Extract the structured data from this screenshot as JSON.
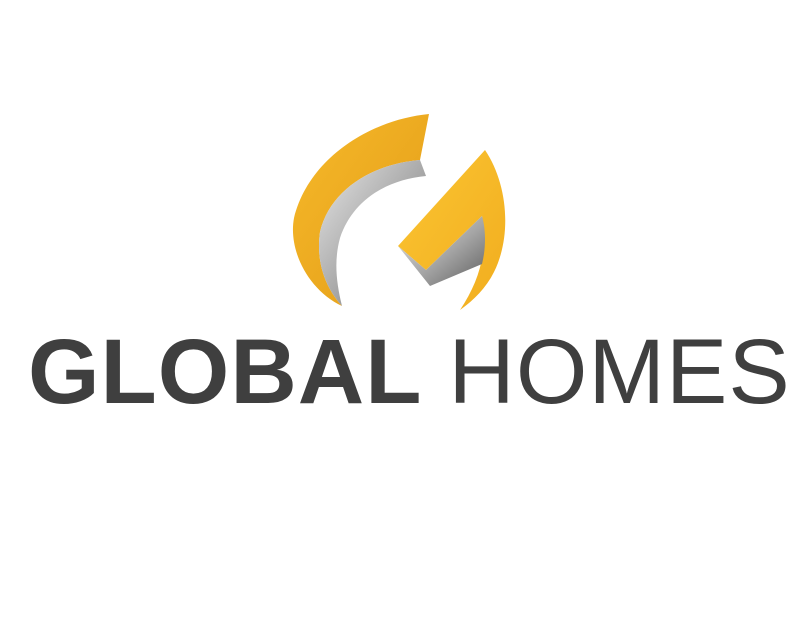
{
  "logo": {
    "word_primary": "GLOBAL",
    "word_secondary": "HOMES",
    "emblem_icon": "stylized-g-emblem-icon",
    "colors": {
      "gold_light": "#f8c02c",
      "gold_dark": "#e0a11a",
      "bevel_light": "#d8d8d8",
      "bevel_dark": "#6a6a6a",
      "text": "#3f3f3f",
      "background": "#ffffff"
    }
  }
}
